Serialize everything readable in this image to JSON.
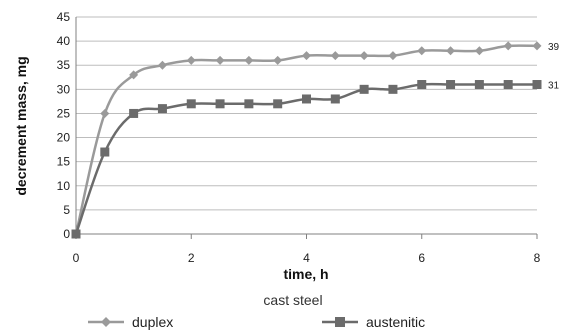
{
  "chart_data": {
    "type": "line",
    "title": "",
    "xlabel": "time, h",
    "ylabel": "decrement mass, mg",
    "xlim": [
      0,
      8
    ],
    "ylim": [
      0,
      45
    ],
    "x_ticks": [
      "0",
      "2",
      "4",
      "6",
      "8"
    ],
    "y_ticks": [
      "0",
      "5",
      "10",
      "15",
      "20",
      "25",
      "30",
      "35",
      "40",
      "45"
    ],
    "grid": "horizontal",
    "legend_title": "cast steel",
    "legend_position": "bottom",
    "series": [
      {
        "name": "duplex",
        "color": "#9a9a9a",
        "marker": "diamond",
        "x": [
          0,
          0.5,
          1,
          1.5,
          2,
          2.5,
          3,
          3.5,
          4,
          4.5,
          5,
          5.5,
          6,
          6.5,
          7,
          7.5,
          8
        ],
        "y": [
          0,
          25,
          33,
          35,
          36,
          36,
          36,
          36,
          37,
          37,
          37,
          37,
          38,
          38,
          38,
          39,
          39
        ],
        "end_label": "39"
      },
      {
        "name": "austenitic",
        "color": "#6b6b6b",
        "marker": "square",
        "x": [
          0,
          0.5,
          1,
          1.5,
          2,
          2.5,
          3,
          3.5,
          4,
          4.5,
          5,
          5.5,
          6,
          6.5,
          7,
          7.5,
          8
        ],
        "y": [
          0,
          17,
          25,
          26,
          27,
          27,
          27,
          27,
          28,
          28,
          30,
          30,
          31,
          31,
          31,
          31,
          31
        ],
        "end_label": "31"
      }
    ]
  }
}
